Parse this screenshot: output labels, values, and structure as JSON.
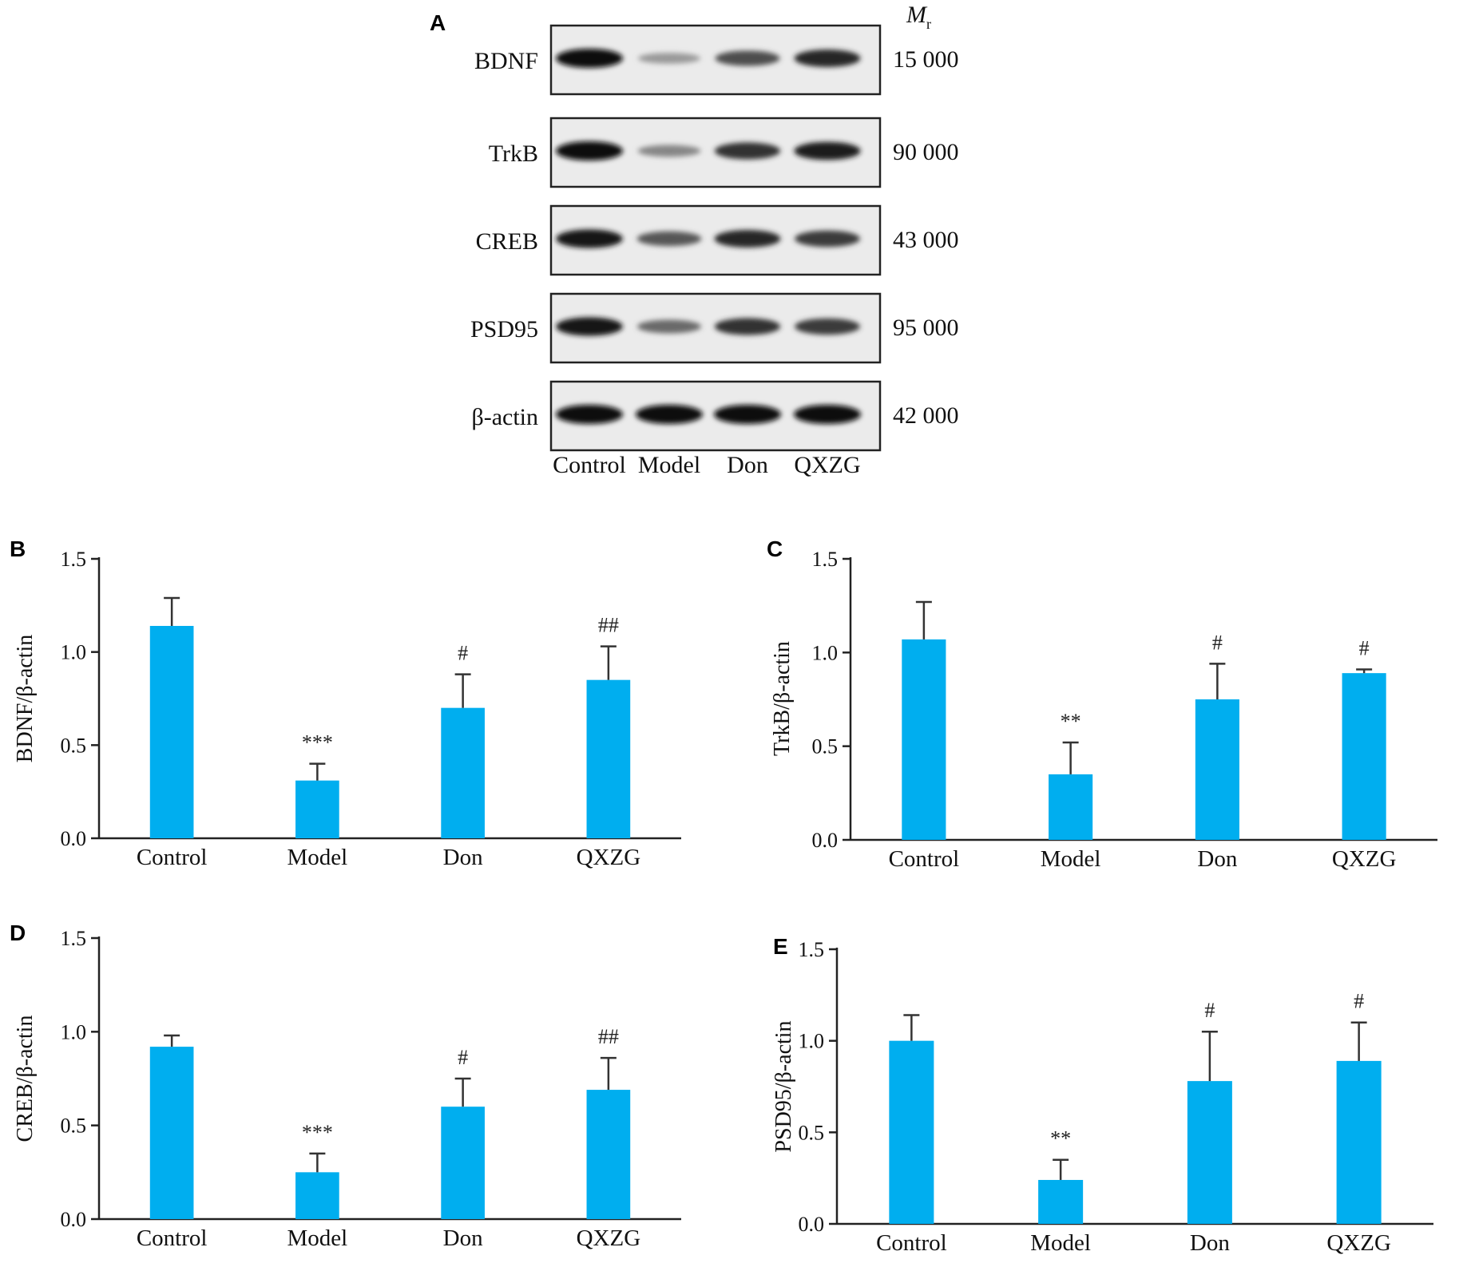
{
  "blot": {
    "panel": "A",
    "mr_label": "M",
    "mr_sub": "r",
    "lanes": [
      "Control",
      "Model",
      "Don",
      "QXZG"
    ],
    "rows": [
      {
        "protein": "BDNF",
        "mr": "15 000",
        "intensity": [
          1.0,
          0.25,
          0.65,
          0.85
        ]
      },
      {
        "protein": "TrkB",
        "mr": "90 000",
        "intensity": [
          1.0,
          0.35,
          0.8,
          0.9
        ]
      },
      {
        "protein": "CREB",
        "mr": "43 000",
        "intensity": [
          0.95,
          0.6,
          0.85,
          0.75
        ]
      },
      {
        "protein": "PSD95",
        "mr": "95 000",
        "intensity": [
          0.95,
          0.5,
          0.8,
          0.75
        ]
      },
      {
        "protein": "β-actin",
        "mr": "42 000",
        "intensity": [
          1.0,
          1.0,
          1.0,
          1.0
        ]
      }
    ]
  },
  "colors": {
    "bar": "#00AEEF",
    "axis": "#222222",
    "error": "#333333"
  },
  "chart_data": [
    {
      "panel": "B",
      "type": "bar",
      "categories": [
        "Control",
        "Model",
        "Don",
        "QXZG"
      ],
      "values": [
        1.14,
        0.31,
        0.7,
        0.85
      ],
      "errors": [
        0.15,
        0.09,
        0.18,
        0.18
      ],
      "significance": [
        "",
        "***",
        "#",
        "##"
      ],
      "ylabel": "BDNF/β-actin",
      "ylim": [
        0,
        1.5
      ],
      "yticks": [
        "0.0",
        "0.5",
        "1.0",
        "1.5"
      ]
    },
    {
      "panel": "C",
      "type": "bar",
      "categories": [
        "Control",
        "Model",
        "Don",
        "QXZG"
      ],
      "values": [
        1.07,
        0.35,
        0.75,
        0.89
      ],
      "errors": [
        0.2,
        0.17,
        0.19,
        0.02
      ],
      "significance": [
        "",
        "**",
        "#",
        "#"
      ],
      "ylabel": "TrkB/β-actin",
      "ylim": [
        0,
        1.5
      ],
      "yticks": [
        "0.0",
        "0.5",
        "1.0",
        "1.5"
      ]
    },
    {
      "panel": "D",
      "type": "bar",
      "categories": [
        "Control",
        "Model",
        "Don",
        "QXZG"
      ],
      "values": [
        0.92,
        0.25,
        0.6,
        0.69
      ],
      "errors": [
        0.06,
        0.1,
        0.15,
        0.17
      ],
      "significance": [
        "",
        "***",
        "#",
        "##"
      ],
      "ylabel": "CREB/β-actin",
      "ylim": [
        0,
        1.5
      ],
      "yticks": [
        "0.0",
        "0.5",
        "1.0",
        "1.5"
      ]
    },
    {
      "panel": "E",
      "type": "bar",
      "categories": [
        "Control",
        "Model",
        "Don",
        "QXZG"
      ],
      "values": [
        1.0,
        0.24,
        0.78,
        0.89
      ],
      "errors": [
        0.14,
        0.11,
        0.27,
        0.21
      ],
      "significance": [
        "",
        "**",
        "#",
        "#"
      ],
      "ylabel": "PSD95/β-actin",
      "ylim": [
        0,
        1.5
      ],
      "yticks": [
        "0.0",
        "0.5",
        "1.0",
        "1.5"
      ]
    }
  ]
}
